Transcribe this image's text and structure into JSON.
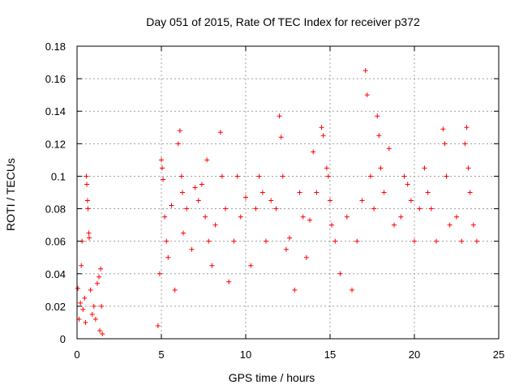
{
  "chart_data": {
    "type": "scatter",
    "title": "Day 051 of 2015, Rate Of TEC Index for receiver p372",
    "xlabel": "GPS time / hours",
    "ylabel": "ROTI / TECUs",
    "xlim": [
      0,
      25
    ],
    "ylim": [
      0,
      0.18
    ],
    "x_ticks": [
      0,
      5,
      10,
      15,
      20,
      25
    ],
    "y_ticks": [
      0,
      0.02,
      0.04,
      0.06,
      0.08,
      0.1,
      0.12,
      0.14,
      0.16,
      0.18
    ],
    "grid": true,
    "legend": "none",
    "marker": "plus",
    "color": "#ff0000",
    "series": [
      {
        "values": [
          [
            0.05,
            0.031
          ],
          [
            0.12,
            0.012
          ],
          [
            0.2,
            0.022
          ],
          [
            0.25,
            0.045
          ],
          [
            0.3,
            0.06
          ],
          [
            0.35,
            0.018
          ],
          [
            0.45,
            0.025
          ],
          [
            0.5,
            0.01
          ],
          [
            0.55,
            0.1
          ],
          [
            0.58,
            0.095
          ],
          [
            0.62,
            0.085
          ],
          [
            0.65,
            0.08
          ],
          [
            0.7,
            0.065
          ],
          [
            0.72,
            0.062
          ],
          [
            0.8,
            0.03
          ],
          [
            0.9,
            0.015
          ],
          [
            1.0,
            0.02
          ],
          [
            1.1,
            0.012
          ],
          [
            1.2,
            0.034
          ],
          [
            1.3,
            0.038
          ],
          [
            1.35,
            0.005
          ],
          [
            1.4,
            0.043
          ],
          [
            1.45,
            0.02
          ],
          [
            1.5,
            0.003
          ],
          [
            4.8,
            0.008
          ],
          [
            4.9,
            0.04
          ],
          [
            5.0,
            0.11
          ],
          [
            5.05,
            0.105
          ],
          [
            5.1,
            0.098
          ],
          [
            5.2,
            0.075
          ],
          [
            5.3,
            0.06
          ],
          [
            5.4,
            0.05
          ],
          [
            5.6,
            0.082
          ],
          [
            5.8,
            0.03
          ],
          [
            6.0,
            0.12
          ],
          [
            6.1,
            0.128
          ],
          [
            6.2,
            0.1
          ],
          [
            6.25,
            0.09
          ],
          [
            6.3,
            0.065
          ],
          [
            6.5,
            0.08
          ],
          [
            6.8,
            0.055
          ],
          [
            7.0,
            0.093
          ],
          [
            7.2,
            0.085
          ],
          [
            7.4,
            0.095
          ],
          [
            7.6,
            0.075
          ],
          [
            7.7,
            0.11
          ],
          [
            7.8,
            0.06
          ],
          [
            8.0,
            0.045
          ],
          [
            8.2,
            0.07
          ],
          [
            8.5,
            0.127
          ],
          [
            8.6,
            0.1
          ],
          [
            8.8,
            0.08
          ],
          [
            9.0,
            0.035
          ],
          [
            9.3,
            0.06
          ],
          [
            9.5,
            0.1
          ],
          [
            9.7,
            0.075
          ],
          [
            10.0,
            0.087
          ],
          [
            10.3,
            0.045
          ],
          [
            10.6,
            0.08
          ],
          [
            10.8,
            0.1
          ],
          [
            11.0,
            0.09
          ],
          [
            11.2,
            0.06
          ],
          [
            11.5,
            0.085
          ],
          [
            11.8,
            0.08
          ],
          [
            12.0,
            0.137
          ],
          [
            12.1,
            0.124
          ],
          [
            12.2,
            0.1
          ],
          [
            12.4,
            0.055
          ],
          [
            12.6,
            0.062
          ],
          [
            12.9,
            0.03
          ],
          [
            13.2,
            0.09
          ],
          [
            13.4,
            0.075
          ],
          [
            13.6,
            0.05
          ],
          [
            13.8,
            0.073
          ],
          [
            14.0,
            0.115
          ],
          [
            14.2,
            0.09
          ],
          [
            14.5,
            0.13
          ],
          [
            14.6,
            0.125
          ],
          [
            14.8,
            0.105
          ],
          [
            14.9,
            0.1
          ],
          [
            15.0,
            0.085
          ],
          [
            15.1,
            0.07
          ],
          [
            15.3,
            0.06
          ],
          [
            15.6,
            0.04
          ],
          [
            16.0,
            0.075
          ],
          [
            16.3,
            0.03
          ],
          [
            16.6,
            0.06
          ],
          [
            16.9,
            0.085
          ],
          [
            17.1,
            0.165
          ],
          [
            17.2,
            0.15
          ],
          [
            17.4,
            0.1
          ],
          [
            17.6,
            0.08
          ],
          [
            17.8,
            0.137
          ],
          [
            17.9,
            0.125
          ],
          [
            18.0,
            0.105
          ],
          [
            18.2,
            0.09
          ],
          [
            18.5,
            0.117
          ],
          [
            18.8,
            0.07
          ],
          [
            19.2,
            0.075
          ],
          [
            19.4,
            0.1
          ],
          [
            19.6,
            0.095
          ],
          [
            19.8,
            0.085
          ],
          [
            20.0,
            0.06
          ],
          [
            20.3,
            0.08
          ],
          [
            20.6,
            0.105
          ],
          [
            20.8,
            0.09
          ],
          [
            21.0,
            0.08
          ],
          [
            21.3,
            0.06
          ],
          [
            21.7,
            0.129
          ],
          [
            21.8,
            0.12
          ],
          [
            21.9,
            0.1
          ],
          [
            22.1,
            0.07
          ],
          [
            22.5,
            0.075
          ],
          [
            22.8,
            0.06
          ],
          [
            23.0,
            0.12
          ],
          [
            23.1,
            0.13
          ],
          [
            23.2,
            0.105
          ],
          [
            23.3,
            0.09
          ],
          [
            23.5,
            0.07
          ],
          [
            23.7,
            0.06
          ]
        ]
      }
    ]
  }
}
